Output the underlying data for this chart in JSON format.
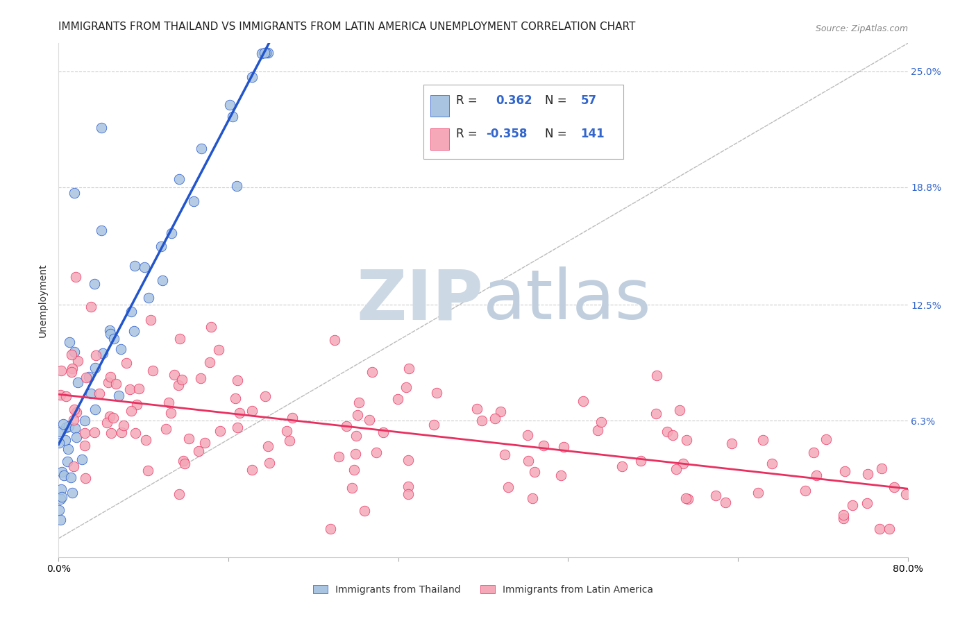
{
  "title": "IMMIGRANTS FROM THAILAND VS IMMIGRANTS FROM LATIN AMERICA UNEMPLOYMENT CORRELATION CHART",
  "source": "Source: ZipAtlas.com",
  "ylabel": "Unemployment",
  "x_min": 0.0,
  "x_max": 0.8,
  "y_min": -0.01,
  "y_max": 0.265,
  "y_ticks": [
    0.063,
    0.125,
    0.188,
    0.25
  ],
  "y_tick_labels": [
    "6.3%",
    "12.5%",
    "18.8%",
    "25.0%"
  ],
  "x_tick_positions": [
    0.0,
    0.16,
    0.32,
    0.48,
    0.64,
    0.8
  ],
  "x_tick_labels": [
    "0.0%",
    "",
    "",
    "",
    "",
    "80.0%"
  ],
  "r_thailand": 0.362,
  "n_thailand": 57,
  "r_latin": -0.358,
  "n_latin": 141,
  "color_thailand": "#a8c4e0",
  "color_latin": "#f4a8b8",
  "color_line_thailand": "#2255cc",
  "color_line_latin": "#e83060",
  "grid_color": "#cccccc",
  "background_color": "#ffffff",
  "title_fontsize": 11,
  "axis_label_fontsize": 10,
  "tick_fontsize": 10,
  "legend_fontsize": 12
}
